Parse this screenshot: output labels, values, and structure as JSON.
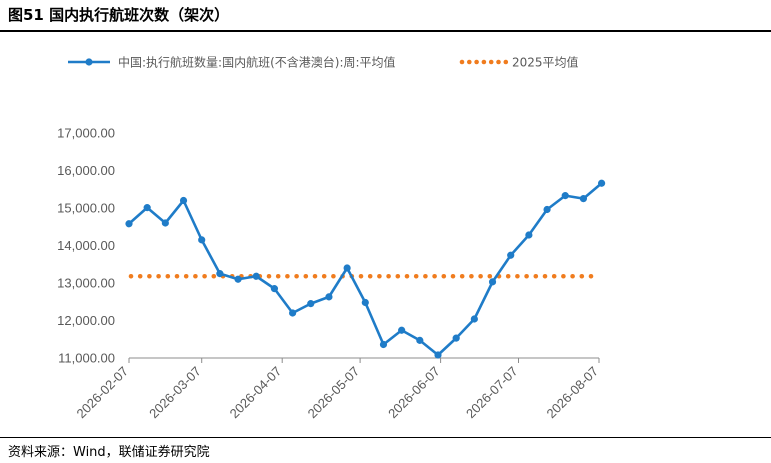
{
  "header": {
    "title": "图51 国内执行航班次数（架次）"
  },
  "footer": {
    "source": "资料来源：Wind，联储证券研究院"
  },
  "colors": {
    "series_line": "#1f7cc8",
    "average_dots": "#f07c1e",
    "axis": "#8c8c8c",
    "text": "#595959"
  },
  "chart_data": {
    "type": "line",
    "title": "",
    "xlabel": "",
    "ylabel": "",
    "ylim": [
      11000,
      17000
    ],
    "yticks": [
      11000,
      12000,
      13000,
      14000,
      15000,
      16000,
      17000
    ],
    "ytick_labels": [
      "11,000.00",
      "12,000.00",
      "13,000.00",
      "14,000.00",
      "15,000.00",
      "16,000.00",
      "17,000.00"
    ],
    "xlim": [
      "2026-02-07",
      "2026-08-07"
    ],
    "xticks": [
      "2026-02-07",
      "2026-03-07",
      "2026-04-07",
      "2026-05-07",
      "2026-06-07",
      "2026-07-07",
      "2026-08-07"
    ],
    "legend_position": "top",
    "series": [
      {
        "name": "中国:执行航班数量:国内航班(不含港澳台):周:平均值",
        "style": "line-with-markers",
        "x": [
          "2026-02-07",
          "2026-02-14",
          "2026-02-21",
          "2026-02-28",
          "2026-03-07",
          "2026-03-14",
          "2026-03-21",
          "2026-03-28",
          "2026-04-04",
          "2026-04-11",
          "2026-04-18",
          "2026-04-25",
          "2026-05-02",
          "2026-05-09",
          "2026-05-16",
          "2026-05-23",
          "2026-05-30",
          "2026-06-06",
          "2026-06-13",
          "2026-06-20",
          "2026-06-27",
          "2026-07-04",
          "2026-07-11",
          "2026-07-18",
          "2026-07-25",
          "2026-08-01",
          "2026-08-08"
        ],
        "values": [
          14580,
          15010,
          14600,
          15200,
          14150,
          13250,
          13100,
          13180,
          12850,
          12200,
          12450,
          12630,
          13400,
          12480,
          11360,
          11740,
          11470,
          11080,
          11530,
          12040,
          13030,
          13740,
          14280,
          14960,
          15330,
          15250,
          15660
        ]
      },
      {
        "name": "2025平均值",
        "style": "dotted",
        "value": 13180
      }
    ]
  }
}
